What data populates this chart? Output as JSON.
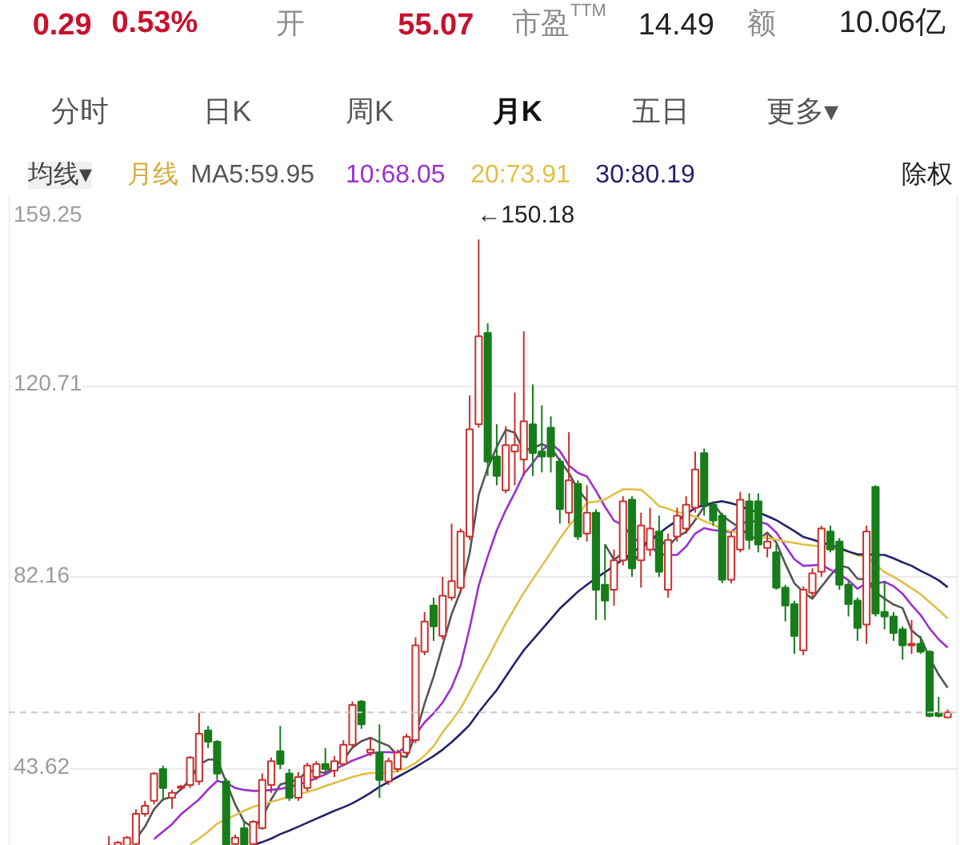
{
  "chart_data": {
    "type": "candlestick",
    "categories": [
      null,
      null,
      null,
      null,
      null,
      null,
      null,
      null,
      null,
      null,
      null,
      null,
      null,
      null,
      null,
      null,
      null,
      null,
      null,
      null,
      null,
      null,
      null,
      null,
      null,
      null,
      null,
      null,
      null,
      null,
      null,
      null,
      null,
      null,
      null,
      null,
      null,
      null,
      null,
      null,
      null,
      null,
      null,
      null,
      null,
      null,
      null,
      null,
      null,
      null,
      null,
      null,
      null,
      null,
      null,
      null,
      null,
      null,
      null,
      null,
      null,
      null,
      null,
      null,
      null,
      null,
      null,
      null,
      null,
      null,
      null,
      null,
      null,
      null,
      null,
      null,
      null,
      null,
      null,
      null,
      null,
      null,
      null,
      null,
      null,
      null,
      null,
      null,
      null,
      null,
      null,
      null,
      null,
      null,
      null,
      null,
      null,
      null,
      null,
      null,
      null,
      null,
      null,
      null
    ],
    "ohlc": [
      null,
      null,
      null,
      null,
      null,
      null,
      null,
      null,
      null,
      null,
      [
        28.2,
        30.1,
        28.2,
        28.2
      ],
      [
        28.2,
        29.1,
        28.2,
        28.8
      ],
      [
        28.2,
        30.1,
        28.2,
        29.8
      ],
      [
        28.5,
        35.5,
        28.2,
        34.6
      ],
      [
        34.6,
        37.2,
        34.0,
        36.2
      ],
      [
        37.2,
        43.0,
        36.5,
        42.7
      ],
      [
        43.6,
        44.3,
        37.2,
        39.8
      ],
      [
        37.8,
        39.4,
        35.6,
        38.8
      ],
      [
        39.8,
        40.4,
        39.4,
        40.1
      ],
      [
        40.4,
        46.2,
        39.8,
        45.9
      ],
      [
        41.1,
        54.9,
        40.4,
        50.7
      ],
      [
        51.4,
        52.3,
        47.8,
        49.1
      ],
      [
        49.1,
        49.4,
        41.4,
        42.7
      ],
      [
        41.1,
        41.7,
        28.2,
        28.2
      ],
      [
        28.5,
        30.4,
        28.2,
        29.8
      ],
      [
        31.7,
        33.0,
        28.2,
        28.2
      ],
      [
        28.5,
        33.3,
        28.2,
        33.0
      ],
      [
        31.7,
        42.7,
        31.4,
        41.4
      ],
      [
        40.4,
        45.9,
        38.8,
        45.2
      ],
      [
        47.2,
        52.3,
        43.6,
        44.6
      ],
      [
        42.7,
        43.6,
        37.2,
        37.8
      ],
      [
        37.8,
        43.0,
        37.2,
        42.0
      ],
      [
        39.8,
        44.9,
        39.1,
        44.3
      ],
      [
        42.0,
        45.2,
        41.4,
        44.6
      ],
      [
        44.6,
        47.8,
        43.0,
        43.6
      ],
      [
        43.3,
        46.2,
        42.0,
        45.2
      ],
      [
        44.6,
        49.4,
        44.3,
        48.5
      ],
      [
        48.5,
        57.2,
        47.8,
        56.5
      ],
      [
        57.2,
        57.5,
        51.7,
        52.6
      ],
      [
        46.9,
        49.8,
        46.2,
        47.5
      ],
      [
        46.9,
        52.6,
        37.8,
        41.4
      ],
      [
        41.1,
        45.9,
        40.4,
        45.2
      ],
      [
        43.6,
        47.5,
        43.0,
        46.9
      ],
      [
        46.9,
        50.7,
        46.2,
        50.1
      ],
      [
        49.4,
        70.1,
        48.8,
        68.5
      ],
      [
        67.2,
        75.2,
        66.5,
        73.3
      ],
      [
        76.5,
        78.1,
        69.4,
        72.3
      ],
      [
        70.4,
        82.3,
        69.7,
        78.5
      ],
      [
        78.1,
        93.0,
        77.5,
        81.4
      ],
      [
        80.1,
        92.0,
        79.1,
        91.4
      ],
      [
        90.4,
        118.8,
        89.7,
        112.0
      ],
      [
        113.0,
        150.18,
        112.3,
        130.7
      ],
      [
        131.4,
        133.3,
        102.6,
        105.5
      ],
      [
        106.5,
        113.0,
        100.7,
        102.6
      ],
      [
        99.7,
        112.6,
        99.1,
        108.8
      ],
      [
        107.5,
        119.4,
        100.7,
        108.8
      ],
      [
        105.9,
        131.7,
        102.6,
        113.6
      ],
      [
        113.0,
        121.0,
        102.6,
        107.2
      ],
      [
        107.5,
        116.8,
        103.3,
        106.5
      ],
      [
        112.3,
        114.6,
        103.3,
        106.5
      ],
      [
        105.5,
        106.2,
        93.0,
        95.9
      ],
      [
        95.2,
        111.4,
        93.0,
        101.7
      ],
      [
        101.0,
        101.7,
        89.7,
        90.4
      ],
      [
        91.0,
        100.7,
        89.4,
        95.2
      ],
      [
        95.2,
        95.9,
        73.6,
        79.7
      ],
      [
        80.7,
        88.8,
        73.6,
        77.5
      ],
      [
        79.7,
        87.8,
        76.5,
        85.6
      ],
      [
        85.6,
        98.5,
        84.6,
        97.5
      ],
      [
        97.8,
        98.5,
        82.3,
        84.0
      ],
      [
        85.6,
        95.2,
        80.1,
        92.6
      ],
      [
        87.8,
        96.2,
        86.5,
        92.0
      ],
      [
        91.4,
        94.6,
        82.3,
        83.3
      ],
      [
        79.7,
        91.0,
        78.1,
        89.7
      ],
      [
        90.4,
        96.2,
        89.4,
        94.6
      ],
      [
        92.0,
        98.5,
        91.0,
        96.8
      ],
      [
        96.2,
        107.5,
        95.2,
        103.9
      ],
      [
        107.2,
        108.1,
        94.6,
        96.8
      ],
      [
        96.8,
        97.5,
        92.6,
        93.6
      ],
      [
        94.6,
        95.2,
        81.0,
        81.7
      ],
      [
        81.7,
        91.4,
        81.0,
        90.4
      ],
      [
        87.8,
        99.4,
        87.2,
        97.8
      ],
      [
        97.5,
        99.1,
        87.8,
        89.7
      ],
      [
        97.5,
        99.1,
        87.2,
        88.8
      ],
      [
        88.1,
        91.0,
        86.2,
        89.4
      ],
      [
        87.2,
        88.8,
        79.7,
        80.1
      ],
      [
        80.1,
        80.7,
        73.3,
        76.5
      ],
      [
        76.8,
        77.5,
        66.8,
        70.4
      ],
      [
        67.5,
        80.4,
        66.5,
        79.7
      ],
      [
        79.1,
        84.0,
        78.1,
        83.0
      ],
      [
        83.3,
        92.6,
        82.3,
        92.0
      ],
      [
        91.4,
        92.6,
        87.2,
        87.8
      ],
      [
        89.4,
        90.1,
        79.7,
        80.7
      ],
      [
        80.7,
        81.4,
        74.3,
        76.8
      ],
      [
        77.5,
        78.1,
        69.4,
        72.0
      ],
      [
        72.7,
        92.6,
        68.8,
        91.4
      ],
      [
        100.4,
        100.7,
        74.3,
        74.9
      ],
      [
        75.2,
        81.4,
        71.7,
        74.3
      ],
      [
        74.3,
        75.2,
        69.4,
        71.0
      ],
      [
        71.7,
        72.3,
        65.6,
        68.5
      ],
      [
        68.5,
        73.6,
        66.8,
        68.8
      ],
      [
        68.8,
        70.4,
        66.8,
        67.2
      ],
      [
        67.2,
        67.5,
        54.0,
        54.3
      ],
      [
        54.9,
        58.1,
        54.0,
        54.3
      ],
      [
        54.0,
        55.6,
        53.9,
        55.0
      ]
    ],
    "colors": [
      null,
      null,
      null,
      null,
      null,
      null,
      null,
      null,
      null,
      null,
      "#c9302c",
      "#c9302c",
      "#c9302c",
      "#c9302c",
      "#c9302c",
      "#c9302c",
      "#177d1a",
      "#c9302c",
      "#c9302c",
      "#c9302c",
      "#c9302c",
      "#177d1a",
      "#177d1a",
      "#177d1a",
      "#c9302c",
      "#177d1a",
      "#c9302c",
      "#c9302c",
      "#c9302c",
      "#177d1a",
      "#177d1a",
      "#c9302c",
      "#c9302c",
      "#c9302c",
      "#177d1a",
      "#c9302c",
      "#c9302c",
      "#c9302c",
      "#177d1a",
      "#c9302c",
      "#177d1a",
      "#c9302c",
      "#c9302c",
      "#c9302c",
      "#c9302c",
      "#c9302c",
      "#177d1a",
      "#c9302c",
      "#c9302c",
      "#c9302c",
      "#c9302c",
      "#c9302c",
      "#177d1a",
      "#177d1a",
      "#c9302c",
      "#c9302c",
      "#c9302c",
      "#177d1a",
      "#177d1a",
      "#177d1a",
      "#177d1a",
      "#c9302c",
      "#177d1a",
      "#c9302c",
      "#177d1a",
      "#177d1a",
      "#c9302c",
      "#c9302c",
      "#177d1a",
      "#c9302c",
      "#c9302c",
      "#177d1a",
      "#c9302c",
      "#c9302c",
      "#c9302c",
      "#c9302c",
      "#177d1a",
      "#177d1a",
      "#177d1a",
      "#c9302c",
      "#c9302c",
      "#177d1a",
      "#177d1a",
      "#c9302c",
      "#177d1a",
      "#177d1a",
      "#177d1a",
      "#c9302c",
      "#c9302c",
      "#c9302c",
      "#177d1a",
      "#177d1a",
      "#177d1a",
      "#177d1a",
      "#c9302c",
      "#177d1a",
      "#177d1a",
      "#177d1a",
      "#177d1a",
      "#c9302c",
      "#177d1a",
      "#177d1a",
      "#177d1a",
      "#c9302c"
    ],
    "series": [
      {
        "name": "MA5:59.95",
        "type": "line",
        "color": "#555555",
        "values": [
          null,
          null,
          null,
          null,
          null,
          null,
          null,
          null,
          null,
          null,
          null,
          null,
          null,
          29.5,
          32.0,
          35.5,
          37.5,
          38.0,
          39.5,
          41.5,
          44.5,
          45.5,
          45.5,
          41.0,
          36.5,
          33.0,
          31.8,
          33.8,
          37.5,
          40.5,
          41.0,
          41.5,
          43.2,
          43.1,
          42.8,
          44.2,
          45.5,
          47.9,
          49.2,
          49.9,
          49.0,
          48.3,
          46.4,
          46.0,
          50.4,
          56.8,
          62.2,
          68.5,
          74.8,
          79.4,
          87.1,
          98.8,
          104.2,
          108.4,
          111.9,
          111.3,
          107.7,
          108.2,
          109.0,
          108.3,
          105.7,
          103.2,
          99.9,
          97.6,
          null,
          88.8,
          85.7,
          87.1,
          84.9,
          87.4,
          90.3,
          89.9,
          88.3,
          90.4,
          91.3,
          93.7,
          96.4,
          97.1,
          94.6,
          93.3,
          92.1,
          90.6,
          89.7,
          91.2,
          89.2,
          84.9,
          81.0,
          79.2,
          77.9,
          80.3,
          82.6,
          84.6,
          84.1,
          81.9,
          81.7,
          79.2,
          77.9,
          76.7,
          76.0,
          71.5,
          70.0,
          66.0,
          62.6,
          59.95
        ]
      },
      {
        "name": "10:68.05",
        "type": "line",
        "color": "#9d2fd0",
        "values": [
          null,
          null,
          null,
          null,
          null,
          null,
          null,
          null,
          null,
          null,
          null,
          null,
          null,
          null,
          null,
          29.5,
          31.0,
          32.5,
          34.5,
          36.0,
          37.5,
          39.5,
          41.2,
          40.8,
          39.8,
          39.4,
          39.2,
          39.2,
          39.4,
          39.6,
          40.0,
          40.5,
          41.0,
          41.8,
          42.5,
          43.5,
          44.4,
          45.3,
          46.0,
          46.7,
          47.0,
          47.0,
          46.9,
          48.2,
          50.5,
          53.0,
          54.8,
          57.0,
          60.0,
          64.5,
          72.0,
          80.5,
          86.4,
          91.6,
          95.7,
          99.2,
          103.0,
          105.2,
          107.7,
          109.2,
          107.6,
          104.7,
          103.2,
          102.5,
          99.6,
          96.4,
          93.6,
          92.7,
          90.4,
          89.0,
          88.6,
          86.8,
          86.7,
          86.7,
          88.4,
          91.0,
          92.1,
          91.7,
          91.5,
          91.3,
          92.9,
          93.5,
          93.4,
          92.9,
          91.2,
          88.5,
          85.8,
          84.5,
          84.6,
          84.7,
          83.7,
          82.8,
          81.6,
          79.9,
          81.0,
          80.9,
          81.3,
          80.4,
          78.9,
          76.6,
          74.6,
          71.9,
          69.7,
          68.05
        ]
      },
      {
        "name": "20:73.91",
        "type": "line",
        "color": "#e0bf45",
        "values": [
          null,
          null,
          null,
          null,
          null,
          null,
          null,
          null,
          null,
          null,
          null,
          null,
          null,
          null,
          null,
          null,
          null,
          null,
          null,
          28.4,
          29.6,
          31.0,
          32.6,
          33.5,
          34.3,
          35.2,
          36.0,
          36.5,
          37.0,
          37.5,
          38.0,
          38.5,
          39.0,
          39.5,
          40.2,
          40.8,
          41.4,
          42.0,
          42.5,
          42.8,
          42.8,
          42.8,
          43.2,
          43.8,
          44.8,
          46.3,
          48.2,
          51.0,
          53.3,
          55.8,
          59.1,
          62.5,
          65.9,
          69.4,
          72.9,
          76.0,
          79.1,
          81.8,
          84.5,
          87.2,
          90.0,
          92.5,
          94.6,
          97.2,
          97.4,
          97.9,
          98.9,
          99.9,
          99.9,
          99.8,
          98.3,
          96.5,
          96.0,
          95.3,
          95.0,
          94.4,
          93.5,
          92.8,
          92.0,
          91.4,
          91.1,
          null,
          90.5,
          90.1,
          89.8,
          89.4,
          89.1,
          88.8,
          88.6,
          88.3,
          88.0,
          87.8,
          87.3,
          86.6,
          86.3,
          84.8,
          83.2,
          82.3,
          81.2,
          80.0,
          78.8,
          77.2,
          75.6,
          73.91
        ]
      },
      {
        "name": "30:80.19",
        "type": "line",
        "color": "#23236b",
        "values": [
          null,
          null,
          null,
          null,
          null,
          null,
          null,
          null,
          null,
          null,
          null,
          null,
          null,
          null,
          null,
          null,
          null,
          null,
          null,
          null,
          null,
          null,
          null,
          null,
          null,
          null,
          28.3,
          28.9,
          29.6,
          30.5,
          31.2,
          32.0,
          32.8,
          33.6,
          34.4,
          35.2,
          35.9,
          36.7,
          37.7,
          38.8,
          40.0,
          41.0,
          42.0,
          43.0,
          44.0,
          45.1,
          46.2,
          47.5,
          49.0,
          50.7,
          52.5,
          55.0,
          57.3,
          59.5,
          62.2,
          64.9,
          67.5,
          69.6,
          71.7,
          73.8,
          75.9,
          77.6,
          79.3,
          80.7,
          82.0,
          83.2,
          84.5,
          85.8,
          87.1,
          88.4,
          89.7,
          91.0,
          92.4,
          93.6,
          94.8,
          96.2,
          96.7,
          97.2,
          97.5,
          97.1,
          96.6,
          95.7,
          95.3,
          94.5,
          93.7,
          92.6,
          91.5,
          90.3,
          89.8,
          89.2,
          88.7,
          88.1,
          87.4,
          86.8,
          86.8,
          86.7,
          86.7,
          86.0,
          85.2,
          84.5,
          83.5,
          82.6,
          81.6,
          80.19
        ]
      }
    ],
    "ylim": [
      28.15,
      159.25
    ],
    "yticks": [
      43.62,
      82.16,
      120.71,
      159.25
    ],
    "tick_labels": "y",
    "grid": "y",
    "legend": "top",
    "legend_title": "月线",
    "ref_lines": [
      {
        "axis": "y",
        "value": 55.0,
        "color": "#c8c8c8",
        "line_style": "dashed"
      }
    ],
    "annotations": [
      "←150.18",
      "0.29",
      "0.53%",
      "开",
      "55.07",
      "市盈$^{TTM}$",
      "14.49",
      "额",
      "10.06亿",
      "分时",
      "日K",
      "周K",
      "月K",
      "五日",
      "更多▾",
      "均线▾",
      "除权"
    ]
  }
}
